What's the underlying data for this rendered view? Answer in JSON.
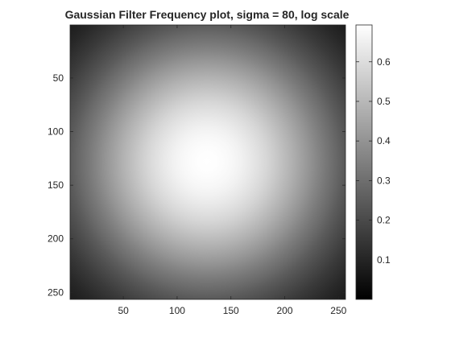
{
  "chart_data": {
    "type": "heatmap",
    "title": "Gaussian Filter Frequency plot, sigma = 80, log scale",
    "xlabel": "",
    "ylabel": "",
    "xlim": [
      0.5,
      256.5
    ],
    "ylim": [
      0.5,
      256.5
    ],
    "y_direction": "reversed",
    "colormap": "gray",
    "center": [
      128,
      128
    ],
    "sigma": 80,
    "peak_value": 0.693,
    "min_value": 0.0,
    "x_ticks": [
      50,
      100,
      150,
      200,
      250
    ],
    "y_ticks": [
      50,
      100,
      150,
      200,
      250
    ],
    "colorbar": {
      "range": [
        0,
        0.693
      ],
      "ticks": [
        0.1,
        0.2,
        0.3,
        0.4,
        0.5,
        0.6
      ],
      "tick_labels": [
        "0.1",
        "0.2",
        "0.3",
        "0.4",
        "0.5",
        "0.6"
      ]
    },
    "grid": false
  }
}
